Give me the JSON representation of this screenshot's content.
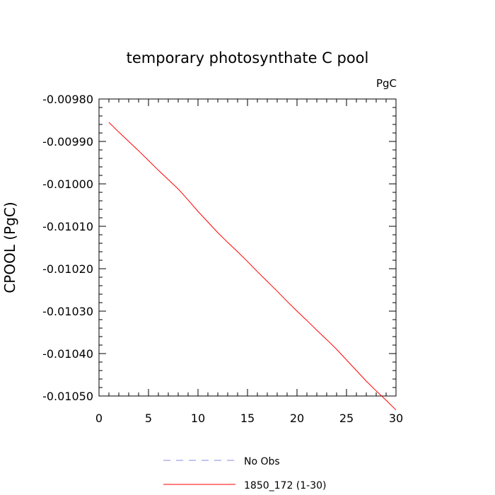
{
  "chart_data": {
    "type": "line",
    "title": "temporary photosynthate C pool",
    "units_label": "PgC",
    "ylabel": "CPOOL  (PgC)",
    "xlabel": "",
    "xlim": [
      0,
      30
    ],
    "ylim": [
      -0.0105,
      -0.0098
    ],
    "x_ticks": [
      0,
      5,
      10,
      15,
      20,
      25,
      30
    ],
    "x_tick_labels": [
      "0",
      "5",
      "10",
      "15",
      "20",
      "25",
      "30"
    ],
    "y_ticks": [
      -0.0098,
      -0.0099,
      -0.01,
      -0.0101,
      -0.0102,
      -0.0103,
      -0.0104,
      -0.0105
    ],
    "y_tick_labels": [
      "-0.00980",
      "-0.00990",
      "-0.01000",
      "-0.01010",
      "-0.01020",
      "-0.01030",
      "-0.01040",
      "-0.01050"
    ],
    "grid": false,
    "legend_position": "bottom",
    "series": [
      {
        "name": "No Obs",
        "color": "#8a8ae0",
        "dash": "dashed",
        "x": [],
        "y": []
      },
      {
        "name": "1850_172 (1-30)",
        "color": "#ff0000",
        "dash": "solid",
        "x": [
          1,
          2,
          3,
          4,
          5,
          6,
          7,
          8,
          9,
          10,
          11,
          12,
          13,
          14,
          15,
          16,
          17,
          18,
          19,
          20,
          21,
          22,
          23,
          24,
          25,
          26,
          27,
          28,
          29,
          30
        ],
        "y": [
          -0.009855,
          -0.009878,
          -0.0099,
          -0.009922,
          -0.009945,
          -0.009968,
          -0.00999,
          -0.010012,
          -0.010038,
          -0.010065,
          -0.01009,
          -0.010115,
          -0.010138,
          -0.01016,
          -0.010183,
          -0.010207,
          -0.01023,
          -0.010253,
          -0.010277,
          -0.0103,
          -0.010322,
          -0.010345,
          -0.010367,
          -0.01039,
          -0.010415,
          -0.01044,
          -0.010465,
          -0.010488,
          -0.01051,
          -0.010533
        ]
      }
    ]
  }
}
